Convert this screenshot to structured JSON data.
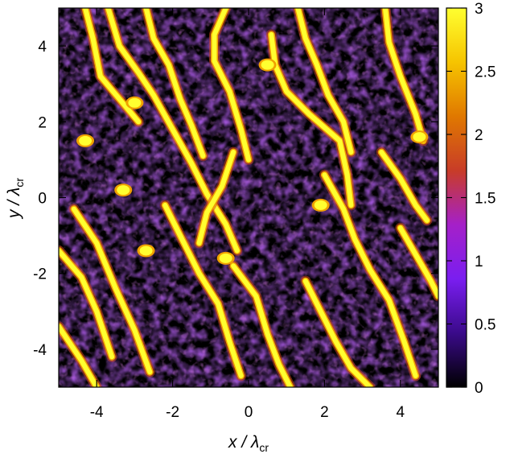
{
  "chart_data": {
    "type": "heatmap",
    "title": "",
    "xlabel": {
      "main": "x / λ",
      "sub": "cr"
    },
    "ylabel": {
      "main": "y / λ",
      "sub": "cr"
    },
    "xlim": [
      -5,
      5
    ],
    "ylim": [
      -5,
      5
    ],
    "x_ticks": [
      -4,
      -2,
      0,
      2,
      4
    ],
    "y_ticks": [
      -4,
      -2,
      0,
      2,
      4
    ],
    "colorbar": {
      "range": [
        0,
        3
      ],
      "ticks": [
        0,
        0.5,
        1,
        1.5,
        2,
        2.5,
        3
      ],
      "colormap": [
        "#000000",
        "#3a0a8a",
        "#7a1ef0",
        "#a520c8",
        "#c83c28",
        "#e07800",
        "#f6c400",
        "#ffff30"
      ]
    },
    "grid": false,
    "pattern_description_note": null,
    "bright_filaments": [
      [
        [
          -5.0,
          -3.4
        ],
        [
          -4.4,
          -4.3
        ],
        [
          -4.0,
          -5.0
        ]
      ],
      [
        [
          -4.6,
          -0.3
        ],
        [
          -4.0,
          -1.2
        ],
        [
          -3.5,
          -2.4
        ],
        [
          -3.0,
          -3.5
        ],
        [
          -2.6,
          -4.6
        ]
      ],
      [
        [
          -5.0,
          -1.4
        ],
        [
          -4.4,
          -2.1
        ],
        [
          -4.0,
          -3.0
        ],
        [
          -3.6,
          -4.2
        ]
      ],
      [
        [
          -4.3,
          5.0
        ],
        [
          -4.1,
          4.2
        ],
        [
          -3.9,
          3.2
        ],
        [
          -3.4,
          2.6
        ],
        [
          -2.9,
          2.0
        ]
      ],
      [
        [
          -3.7,
          5.0
        ],
        [
          -3.4,
          4.0
        ],
        [
          -2.9,
          3.3
        ],
        [
          -2.5,
          2.7
        ],
        [
          -2.0,
          1.8
        ],
        [
          -1.5,
          0.9
        ],
        [
          -1.1,
          0.1
        ],
        [
          -0.6,
          -0.7
        ],
        [
          -0.3,
          -1.4
        ]
      ],
      [
        [
          -2.7,
          5.0
        ],
        [
          -2.5,
          4.2
        ],
        [
          -2.1,
          3.5
        ],
        [
          -1.8,
          2.6
        ],
        [
          -1.5,
          1.9
        ],
        [
          -1.2,
          1.1
        ]
      ],
      [
        [
          -0.6,
          5.0
        ],
        [
          -0.9,
          4.3
        ],
        [
          -0.9,
          3.6
        ],
        [
          -0.5,
          2.8
        ],
        [
          -0.2,
          1.8
        ],
        [
          0.0,
          1.0
        ]
      ],
      [
        [
          -2.2,
          -0.2
        ],
        [
          -1.8,
          -1.0
        ],
        [
          -1.3,
          -2.0
        ],
        [
          -0.8,
          -2.8
        ],
        [
          -0.5,
          -3.8
        ],
        [
          -0.2,
          -4.7
        ]
      ],
      [
        [
          -0.4,
          -1.8
        ],
        [
          0.2,
          -2.6
        ],
        [
          0.5,
          -3.6
        ],
        [
          0.8,
          -4.4
        ],
        [
          1.1,
          -5.0
        ]
      ],
      [
        [
          0.6,
          4.3
        ],
        [
          0.7,
          3.5
        ],
        [
          1.0,
          2.8
        ],
        [
          1.6,
          2.2
        ],
        [
          2.4,
          1.5
        ],
        [
          2.6,
          0.6
        ],
        [
          2.7,
          -0.2
        ]
      ],
      [
        [
          1.3,
          5.0
        ],
        [
          1.5,
          4.2
        ],
        [
          1.8,
          3.5
        ],
        [
          2.1,
          2.7
        ],
        [
          2.5,
          2.0
        ],
        [
          2.7,
          1.2
        ]
      ],
      [
        [
          2.0,
          0.6
        ],
        [
          2.5,
          -0.3
        ],
        [
          2.8,
          -1.1
        ],
        [
          3.2,
          -1.9
        ],
        [
          3.7,
          -2.7
        ],
        [
          4.1,
          -3.8
        ],
        [
          4.4,
          -4.7
        ]
      ],
      [
        [
          1.5,
          -2.2
        ],
        [
          1.9,
          -3.0
        ],
        [
          2.3,
          -3.8
        ],
        [
          2.7,
          -4.5
        ],
        [
          3.2,
          -5.0
        ]
      ],
      [
        [
          3.6,
          5.0
        ],
        [
          3.7,
          4.1
        ],
        [
          4.0,
          3.2
        ],
        [
          4.4,
          2.2
        ],
        [
          4.6,
          1.5
        ]
      ],
      [
        [
          4.0,
          -0.8
        ],
        [
          4.4,
          -1.5
        ],
        [
          4.8,
          -2.2
        ],
        [
          5.0,
          -2.6
        ]
      ],
      [
        [
          -1.3,
          -1.2
        ],
        [
          -1.1,
          -0.4
        ],
        [
          -0.7,
          0.3
        ],
        [
          -0.4,
          1.2
        ]
      ],
      [
        [
          3.5,
          1.2
        ],
        [
          4.0,
          0.5
        ],
        [
          4.4,
          -0.2
        ],
        [
          4.7,
          -0.6
        ]
      ]
    ],
    "bright_blobs": [
      [
        -4.3,
        1.5
      ],
      [
        -3.3,
        0.2
      ],
      [
        -2.7,
        -1.4
      ],
      [
        -0.6,
        -1.6
      ],
      [
        1.9,
        -0.2
      ],
      [
        4.5,
        1.6
      ],
      [
        -3.0,
        2.5
      ],
      [
        0.5,
        3.5
      ]
    ]
  }
}
